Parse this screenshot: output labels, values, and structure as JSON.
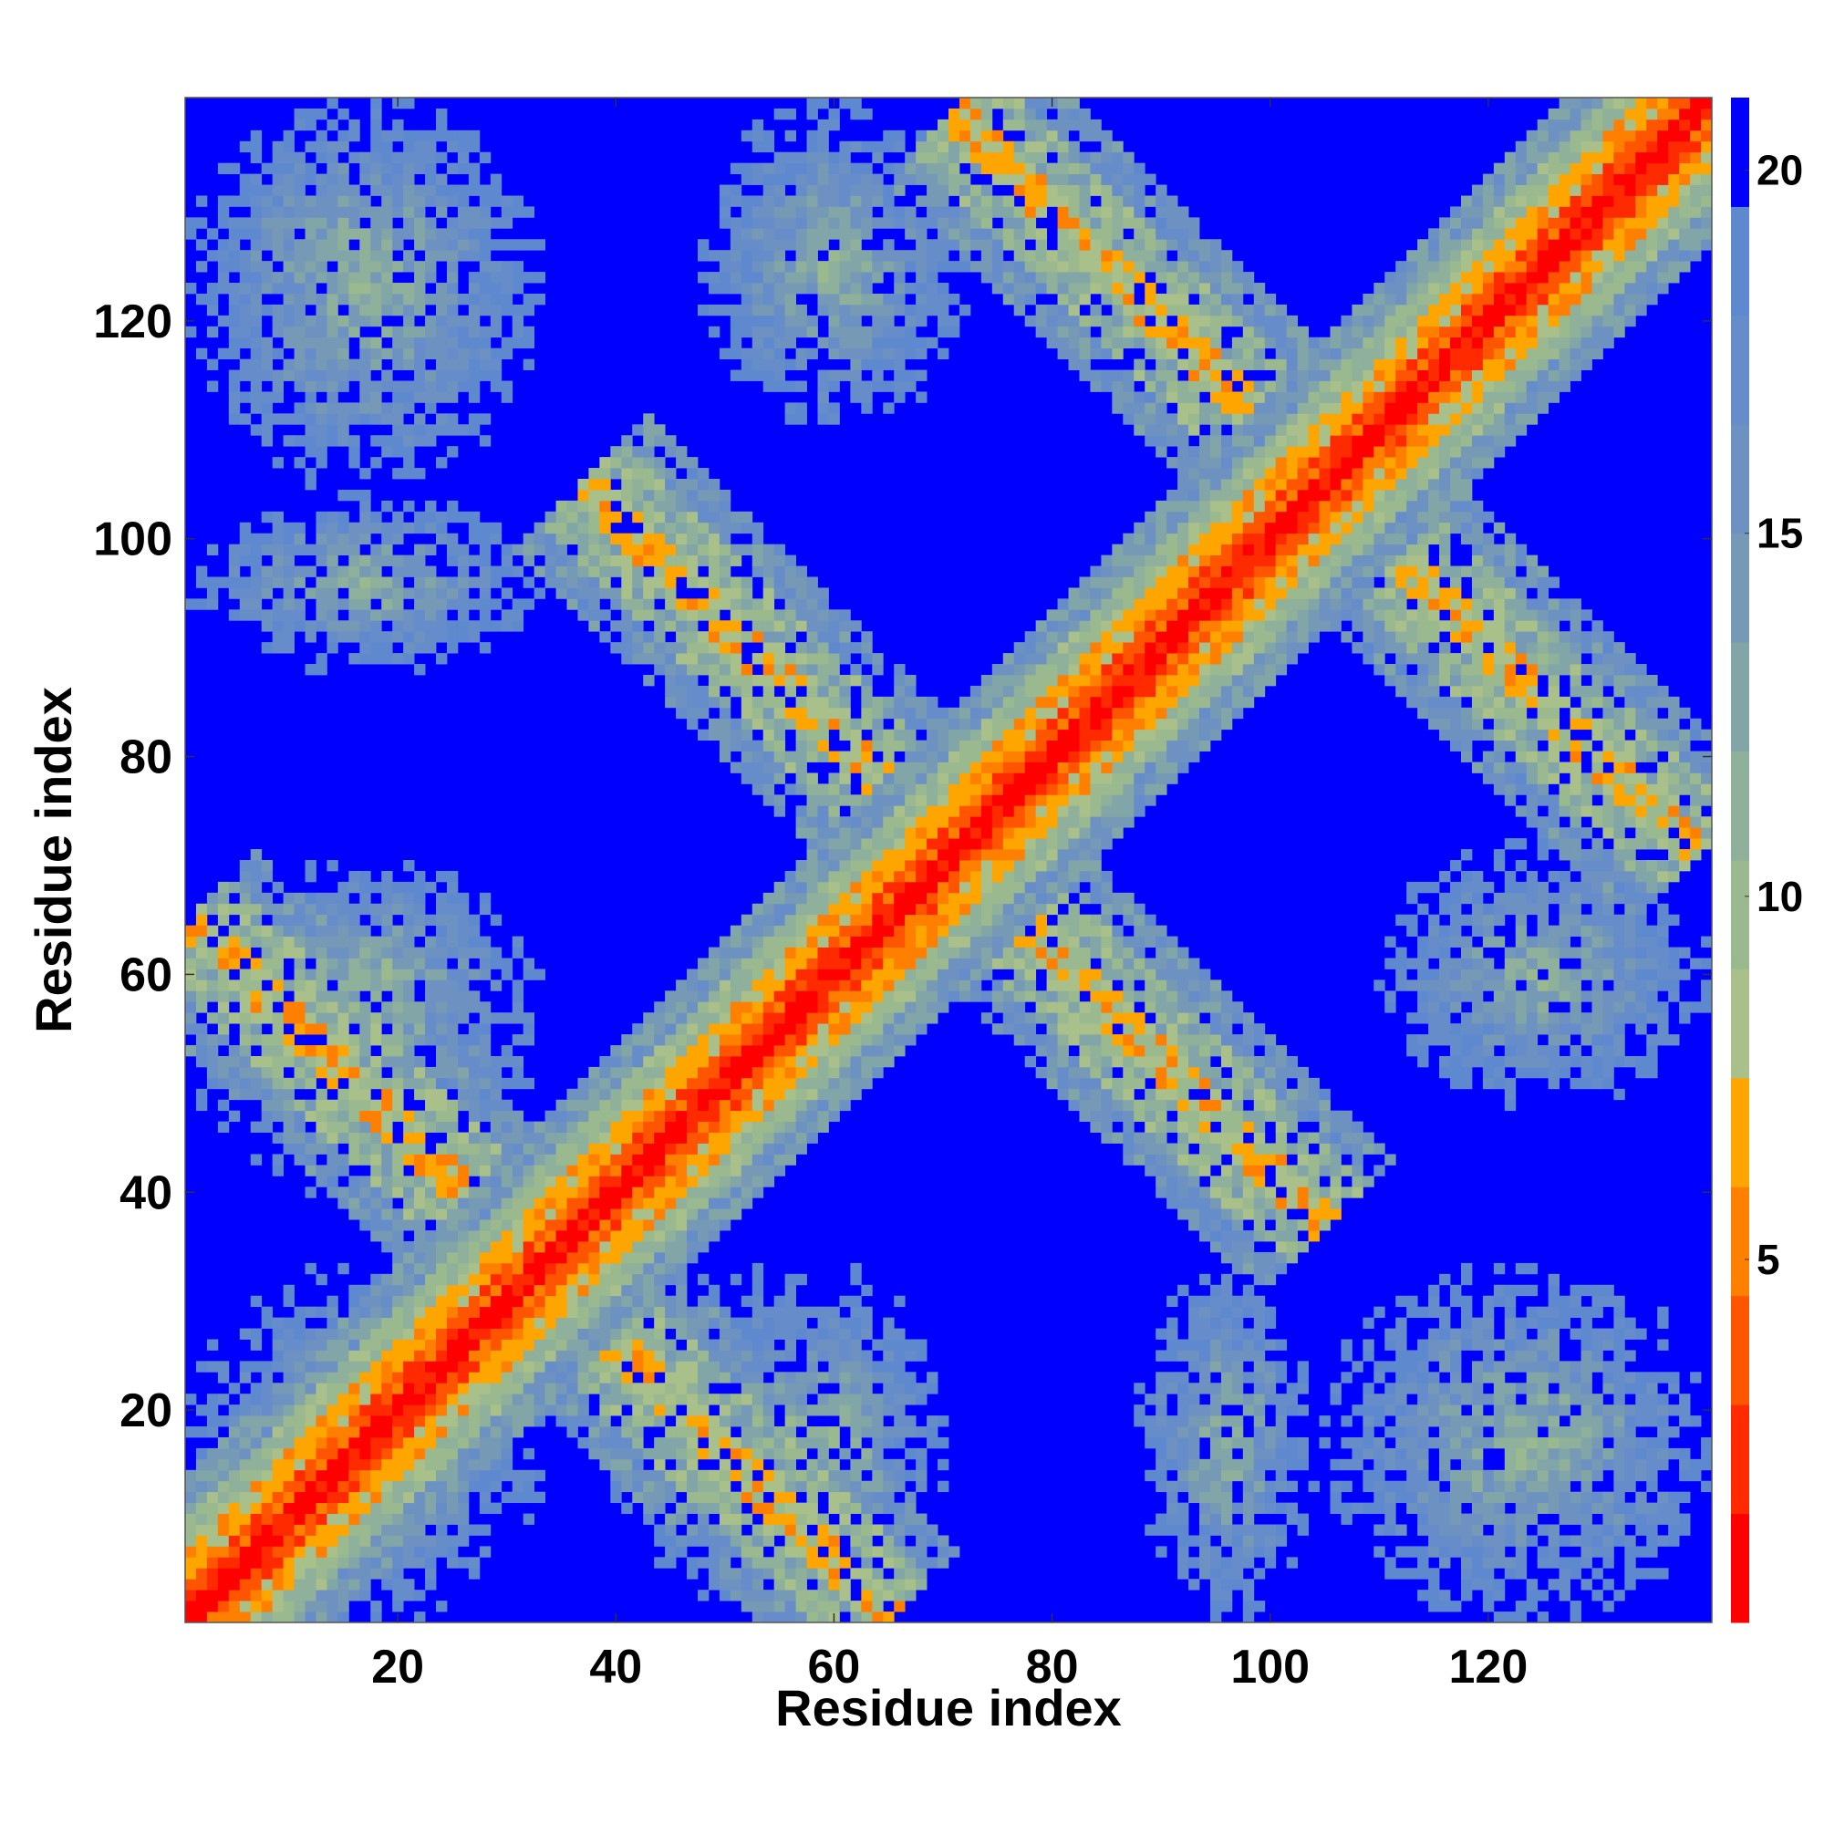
{
  "chart_data": {
    "type": "heatmap",
    "title": "",
    "xlabel": "Residue index",
    "ylabel": "Residue index",
    "n_residues": 140,
    "xlim": [
      0.5,
      140.5
    ],
    "ylim": [
      0.5,
      140.5
    ],
    "x_ticks": [
      20,
      40,
      60,
      80,
      100,
      120
    ],
    "y_ticks": [
      20,
      40,
      60,
      80,
      100,
      120
    ],
    "x_tick_labels": [
      "20",
      "40",
      "60",
      "80",
      "100",
      "120"
    ],
    "y_tick_labels": [
      "20",
      "40",
      "60",
      "80",
      "100",
      "120"
    ],
    "colorbar": {
      "range": [
        0,
        21
      ],
      "ticks": [
        5,
        10,
        15,
        20
      ],
      "tick_labels": [
        "5",
        "10",
        "15",
        "20"
      ],
      "levels": [
        {
          "max": 1.5,
          "color": "#ff0000"
        },
        {
          "max": 3.0,
          "color": "#ff2a00"
        },
        {
          "max": 4.5,
          "color": "#ff5500"
        },
        {
          "max": 6.0,
          "color": "#ff7f00"
        },
        {
          "max": 7.5,
          "color": "#ffa500"
        },
        {
          "max": 9.0,
          "color": "#a9c08a"
        },
        {
          "max": 10.5,
          "color": "#9bb98e"
        },
        {
          "max": 12.0,
          "color": "#8fb09a"
        },
        {
          "max": 13.5,
          "color": "#82a6a8"
        },
        {
          "max": 15.0,
          "color": "#7699b5"
        },
        {
          "max": 16.5,
          "color": "#6d92c2"
        },
        {
          "max": 18.0,
          "color": "#668dc9"
        },
        {
          "max": 19.5,
          "color": "#5f89cf"
        },
        {
          "max": 21.0,
          "color": "#0000ff"
        }
      ]
    },
    "diagonal": {
      "start": 1,
      "end": 140
    },
    "antidiagonal_hairpins": [
      {
        "center": [
          33,
          33
        ],
        "half_length": 32
      },
      {
        "center": [
          71,
          71
        ],
        "half_length": 34
      },
      {
        "center": [
          105,
          105
        ],
        "half_length": 34
      }
    ],
    "off_diagonal_contact_blobs": [
      {
        "x_range": [
          1,
          33
        ],
        "y_range": [
          1,
          33
        ]
      },
      {
        "x_range": [
          1,
          33
        ],
        "y_range": [
          50,
          70
        ]
      },
      {
        "x_range": [
          40,
          70
        ],
        "y_range": [
          1,
          33
        ]
      },
      {
        "x_range": [
          1,
          33
        ],
        "y_range": [
          88,
          104
        ]
      },
      {
        "x_range": [
          88,
          104
        ],
        "y_range": [
          1,
          33
        ]
      },
      {
        "x_range": [
          1,
          33
        ],
        "y_range": [
          105,
          140
        ]
      },
      {
        "x_range": [
          48,
          72
        ],
        "y_range": [
          110,
          140
        ]
      },
      {
        "x_range": [
          110,
          140
        ],
        "y_range": [
          48,
          72
        ]
      },
      {
        "x_range": [
          110,
          140
        ],
        "y_range": [
          1,
          33
        ]
      }
    ]
  }
}
